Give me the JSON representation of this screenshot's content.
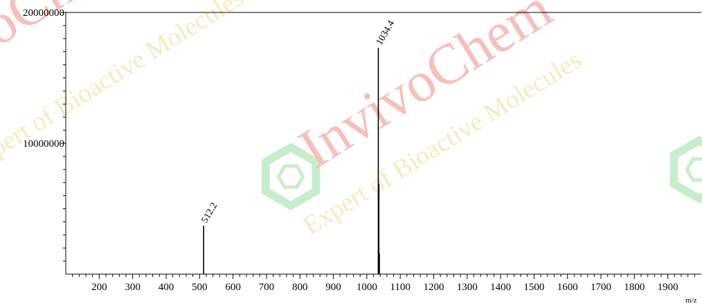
{
  "chart_data": {
    "type": "bar",
    "subtype": "mass-spectrum",
    "xlabel": "m/z",
    "ylabel": "",
    "xlim": [
      100,
      2000
    ],
    "ylim": [
      0,
      20000000
    ],
    "x_ticks": [
      "200",
      "300",
      "400",
      "500",
      "600",
      "700",
      "800",
      "900",
      "1000",
      "1100",
      "1200",
      "1300",
      "1400",
      "1500",
      "1600",
      "1700",
      "1800",
      "1900"
    ],
    "y_ticks": [
      "10000000",
      "20000000"
    ],
    "peaks": [
      {
        "mz": 512.2,
        "intensity": 3700000,
        "label": "512.2"
      },
      {
        "mz": 1034.4,
        "intensity": 17300000,
        "label": "1034.4"
      },
      {
        "mz": 1036.0,
        "intensity": 6900000,
        "label": ""
      },
      {
        "mz": 1037.5,
        "intensity": 1600000,
        "label": ""
      }
    ],
    "grid": false,
    "legend": "none"
  },
  "watermark": {
    "brand": "InvivoChem",
    "tagline": "Expert of Bioactive Molecules",
    "brand_color": "#e8453c",
    "tagline_color": "#e7c14a",
    "logo_color": "#5ecf6a"
  }
}
